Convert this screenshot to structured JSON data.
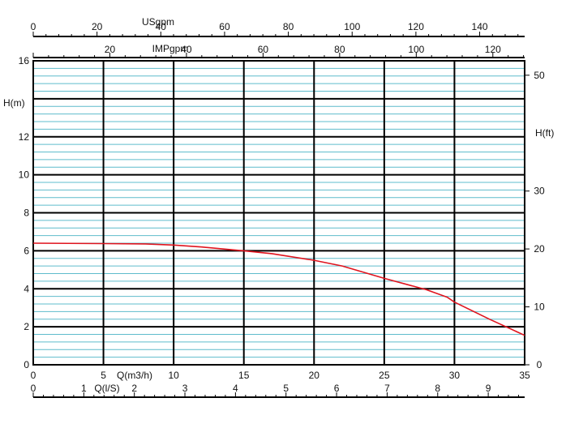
{
  "chart_data": {
    "type": "line",
    "title": "",
    "grid": true,
    "x_primary": {
      "label": "Q(m3/h)",
      "range": [
        0,
        35
      ],
      "ticks": [
        0,
        5,
        10,
        15,
        20,
        25,
        30,
        35
      ]
    },
    "x_ls": {
      "label": "Q(l/S)",
      "range": [
        0,
        9.72
      ],
      "ticks": [
        0,
        1,
        2,
        3,
        4,
        5,
        6,
        7,
        8,
        9
      ]
    },
    "x_usgpm": {
      "label": "USgpm",
      "range": [
        0,
        154.1
      ],
      "ticks": [
        0,
        20,
        40,
        60,
        80,
        100,
        120,
        140
      ]
    },
    "x_impgpm": {
      "label": "IMPgpm",
      "range": [
        0,
        128.3
      ],
      "ticks": [
        20,
        40,
        60,
        80,
        100,
        120
      ]
    },
    "y_primary": {
      "label": "H(m)",
      "range": [
        0,
        16
      ],
      "ticks": [
        0,
        2,
        4,
        6,
        8,
        10,
        12,
        16
      ]
    },
    "y_ft": {
      "label": "H(ft)",
      "range": [
        0,
        52.49
      ],
      "ticks": [
        0,
        10,
        20,
        30,
        50
      ]
    },
    "series": [
      {
        "name": "",
        "color": "#e0141e",
        "points": [
          [
            0,
            6.4
          ],
          [
            5,
            6.38
          ],
          [
            8,
            6.36
          ],
          [
            10,
            6.3
          ],
          [
            12,
            6.2
          ],
          [
            15,
            6.0
          ],
          [
            17,
            5.85
          ],
          [
            20,
            5.5
          ],
          [
            22,
            5.2
          ],
          [
            25,
            4.55
          ],
          [
            28,
            3.95
          ],
          [
            29.5,
            3.55
          ],
          [
            30,
            3.3
          ],
          [
            32.5,
            2.4
          ],
          [
            35,
            1.55
          ]
        ]
      }
    ],
    "colors": {
      "minor_grid": "#5fbccc",
      "major_grid": "#000000",
      "curve": "#e0141e"
    }
  }
}
